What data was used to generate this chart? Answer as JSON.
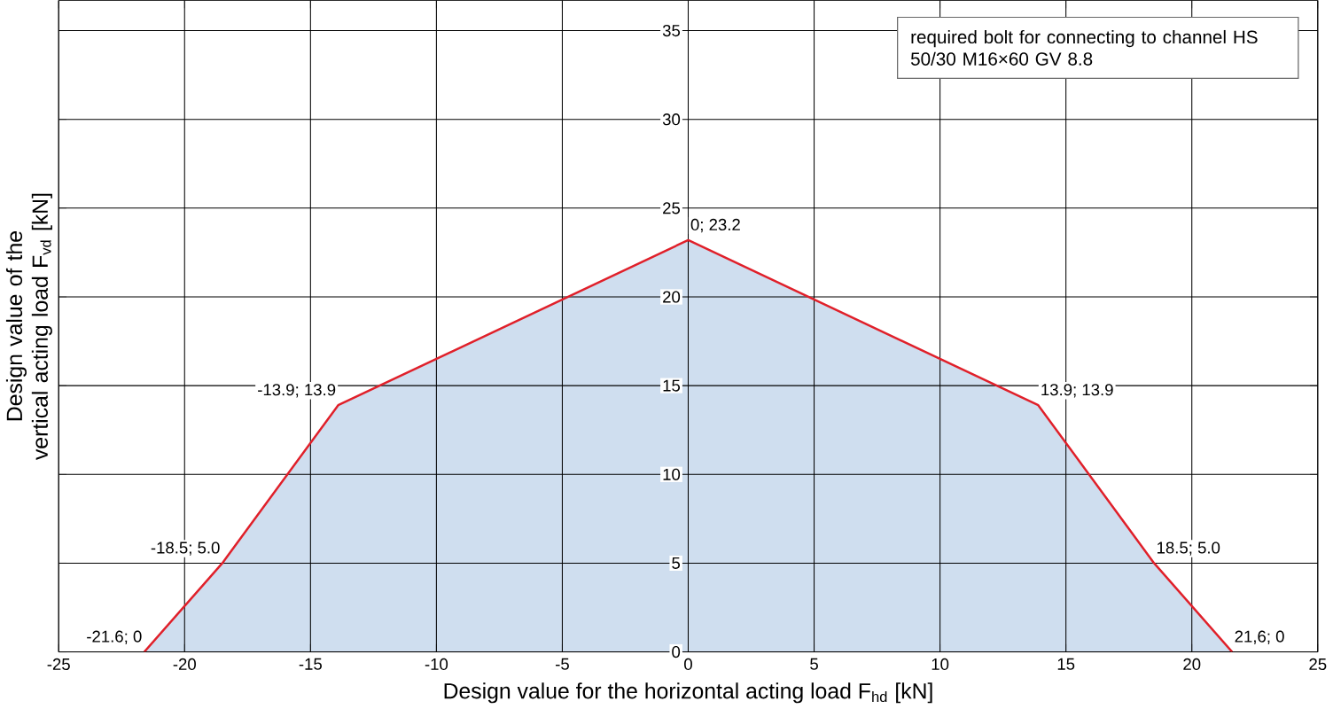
{
  "chart_data": {
    "type": "area",
    "xlabel": "Design value for the horizontal acting load F$_{hd}$ [kN]",
    "ylabel": "Design value of the vertical acting load F$_{vd}$ [kN]",
    "x": [
      -21.6,
      -18.5,
      -13.9,
      0,
      13.9,
      18.5,
      21.6
    ],
    "series": [
      {
        "color": "#e0202a",
        "values": [
          0,
          5.0,
          13.9,
          23.2,
          13.9,
          5.0,
          0
        ]
      }
    ],
    "xlim": [
      -25,
      25
    ],
    "ylim": [
      0,
      36.7
    ],
    "xticks": [
      -25,
      -20,
      -15,
      -10,
      -5,
      0,
      5,
      10,
      15,
      20,
      25
    ],
    "yticks": [
      0,
      5,
      10,
      15,
      20,
      25,
      30,
      35
    ],
    "grid": true,
    "marker": "none",
    "annotations": [
      "required bolt for connecting to channel HS 50/30 M16×60 GV 8.8",
      {
        "text": "-21.6; 0",
        "x": -21.6,
        "y": 0
      },
      {
        "text": "-18.5; 5.0",
        "x": -18.5,
        "y": 5.0
      },
      {
        "text": "-13.9; 13.9",
        "x": -13.9,
        "y": 13.9
      },
      {
        "text": "0; 23.2",
        "x": 0,
        "y": 23.2
      },
      {
        "text": "13.9; 13.9",
        "x": 13.9,
        "y": 13.9
      },
      {
        "text": "18.5; 5.0",
        "x": 18.5,
        "y": 5.0
      },
      {
        "text": "21,6; 0",
        "x": 21.6,
        "y": 0
      }
    ]
  }
}
